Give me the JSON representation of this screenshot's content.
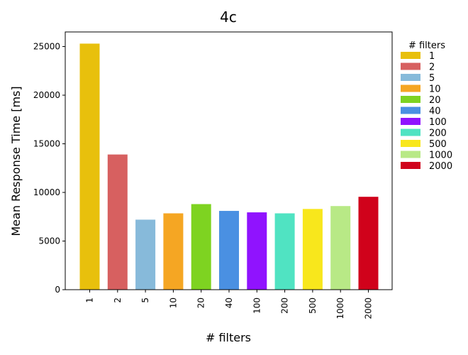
{
  "chart_data": {
    "type": "bar",
    "title": "4c",
    "xlabel": "# filters",
    "ylabel": "Mean Response Time [ms]",
    "ylim": [
      0,
      26500
    ],
    "yticks": [
      0,
      5000,
      10000,
      15000,
      20000,
      25000
    ],
    "categories": [
      "1",
      "2",
      "5",
      "10",
      "20",
      "40",
      "100",
      "200",
      "500",
      "1000",
      "2000"
    ],
    "values": [
      25300,
      13900,
      7200,
      7850,
      8800,
      8100,
      7950,
      7850,
      8300,
      8600,
      9550
    ],
    "colors": [
      "#E8C00C",
      "#D76060",
      "#87BADA",
      "#F5A623",
      "#7ED321",
      "#4A90E2",
      "#9013FE",
      "#50E3C2",
      "#F8E71C",
      "#B8E986",
      "#D0021B"
    ],
    "legend": {
      "title": "# filters",
      "placement": "right-outside",
      "entries": [
        "1",
        "2",
        "5",
        "10",
        "20",
        "40",
        "100",
        "200",
        "500",
        "1000",
        "2000"
      ]
    },
    "grid": false
  }
}
